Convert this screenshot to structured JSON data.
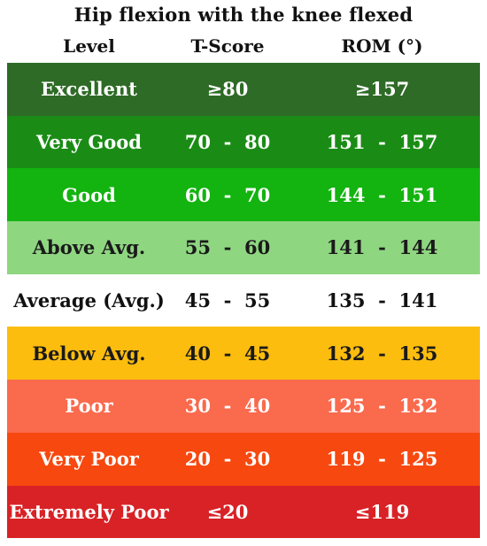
{
  "title": "Hip flexion with the knee flexed",
  "headers": {
    "level": "Level",
    "tscore": "T-Score",
    "rom": "ROM (°)"
  },
  "rows": [
    {
      "level": "Excellent",
      "tscore": "≥80",
      "rom": "≥157",
      "color": "#2e6b26"
    },
    {
      "level": "Very Good",
      "tscore": "70  -  80",
      "rom": "151  -  157",
      "color": "#1a8c15"
    },
    {
      "level": "Good",
      "tscore": "60  -  70",
      "rom": "144  -  151",
      "color": "#13b310"
    },
    {
      "level": "Above Avg.",
      "tscore": "55  -  60",
      "rom": "141  -  144",
      "color": "#8fd681"
    },
    {
      "level": "Average (Avg.)",
      "tscore": "45  -  55",
      "rom": "135  -  141",
      "color": "#ffffff"
    },
    {
      "level": "Below Avg.",
      "tscore": "40  -  45",
      "rom": "132  -  135",
      "color": "#fcbd0f"
    },
    {
      "level": "Poor",
      "tscore": "30  -  40",
      "rom": "125  -  132",
      "color": "#fa6a4d"
    },
    {
      "level": "Very Poor",
      "tscore": "20  -  30",
      "rom": "119  -  125",
      "color": "#f7480f"
    },
    {
      "level": "Extremely Poor",
      "tscore": "≤20",
      "rom": "≤119",
      "color": "#d82226"
    }
  ]
}
